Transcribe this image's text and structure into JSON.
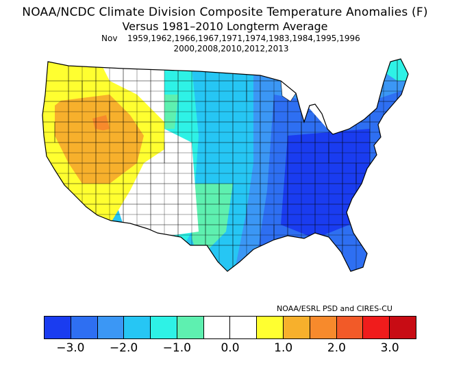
{
  "title": {
    "line1": "NOAA/NCDC Climate Division Composite Temperature Anomalies (F)",
    "line2": "Versus 1981–2010 Longterm Average",
    "month": "Nov",
    "years_line1": "1959,1962,1966,1967,1971,1974,1983,1984,1995,1996",
    "years_line2": "2000,2008,2010,2012,2013"
  },
  "credit": "NOAA/ESRL PSD and CIRES-CU",
  "colorbar": {
    "colors": [
      "#1a3cf0",
      "#2e6ff2",
      "#3b97f5",
      "#26c6f4",
      "#2ef2e6",
      "#5ef0b0",
      "#ffffff",
      "#ffffff",
      "#ffff30",
      "#f7b02c",
      "#f78a2c",
      "#f25a28",
      "#f01c1c",
      "#c80c14"
    ],
    "ticks": [
      {
        "label": "−3.0",
        "value": -3.0
      },
      {
        "label": "−2.0",
        "value": -2.0
      },
      {
        "label": "−1.0",
        "value": -1.0
      },
      {
        "label": "0.0",
        "value": 0.0
      },
      {
        "label": "1.0",
        "value": 1.0
      },
      {
        "label": "2.0",
        "value": 2.0
      },
      {
        "label": "3.0",
        "value": 3.0
      }
    ]
  },
  "map": {
    "region": "Contiguous United States climate divisions",
    "anomaly_colors": {
      "strong_cold": "#1a3cf0",
      "cold": "#2e6ff2",
      "moderate_cold": "#3b97f5",
      "cool": "#26c6f4",
      "slight_cool": "#2ef2e6",
      "near_cool": "#5ef0b0",
      "neutral": "#ffffff",
      "warm": "#ffff30",
      "warmer": "#f7b02c",
      "hot": "#f78a2c"
    }
  }
}
